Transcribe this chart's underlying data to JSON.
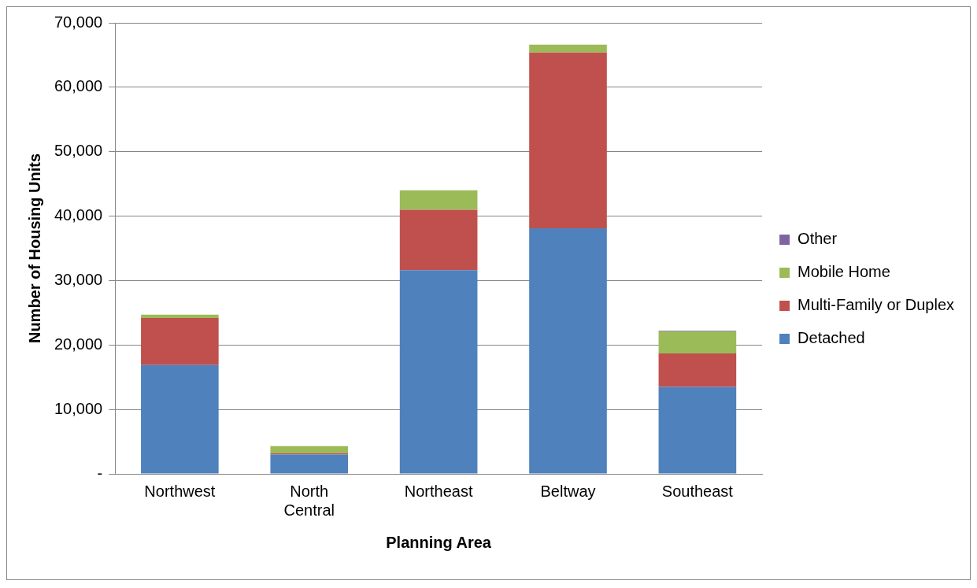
{
  "chart_data": {
    "type": "bar",
    "stacked": true,
    "xlabel": "Planning Area",
    "ylabel": "Number of Housing Units",
    "categories": [
      "Northwest",
      "North Central",
      "Northeast",
      "Beltway",
      "Southeast"
    ],
    "series": [
      {
        "name": "Detached",
        "color": "#4f81bd",
        "values": [
          16900,
          3000,
          31600,
          38100,
          13500
        ]
      },
      {
        "name": "Multi-Family or Duplex",
        "color": "#c0504d",
        "values": [
          7300,
          200,
          9400,
          27300,
          5200
        ]
      },
      {
        "name": "Mobile Home",
        "color": "#9bbb59",
        "values": [
          500,
          1100,
          3000,
          1200,
          3400
        ]
      },
      {
        "name": "Other",
        "color": "#8064a2",
        "values": [
          0,
          0,
          0,
          0,
          100
        ]
      }
    ],
    "ylim": [
      0,
      70000
    ],
    "yticks": [
      {
        "value": 0,
        "label": "-"
      },
      {
        "value": 10000,
        "label": "10,000"
      },
      {
        "value": 20000,
        "label": "20,000"
      },
      {
        "value": 30000,
        "label": "30,000"
      },
      {
        "value": 40000,
        "label": "40,000"
      },
      {
        "value": 50000,
        "label": "50,000"
      },
      {
        "value": 60000,
        "label": "60,000"
      },
      {
        "value": 70000,
        "label": "70,000"
      }
    ],
    "grid": "y",
    "legend": "right"
  }
}
